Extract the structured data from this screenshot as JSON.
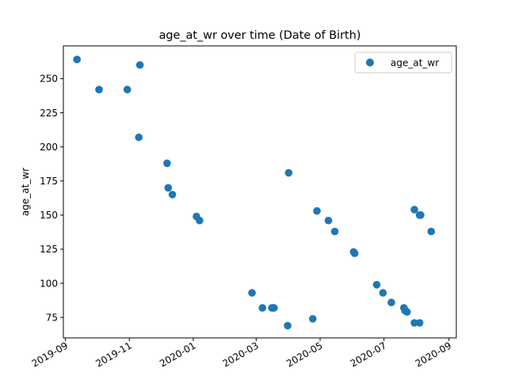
{
  "chart_data": {
    "type": "scatter",
    "title": "age_at_wr over time (Date of Birth)",
    "xlabel": "",
    "ylabel": "age_at_wr",
    "x_is_date": true,
    "xlim": [
      "2019-08-30",
      "2020-09-08"
    ],
    "ylim": [
      60,
      274
    ],
    "x_ticks": [
      "2019-09-01",
      "2019-11-01",
      "2020-01-01",
      "2020-03-01",
      "2020-05-01",
      "2020-07-01",
      "2020-09-01"
    ],
    "x_tick_labels": [
      "2019-09",
      "2019-11",
      "2020-01",
      "2020-03",
      "2020-05",
      "2020-07",
      "2020-09"
    ],
    "y_ticks": [
      75,
      100,
      125,
      150,
      175,
      200,
      225,
      250
    ],
    "y_tick_labels": [
      "75",
      "100",
      "125",
      "150",
      "175",
      "200",
      "225",
      "250"
    ],
    "grid": false,
    "legend": {
      "position": "top-right",
      "entries": [
        "age_at_wr"
      ]
    },
    "marker_color": "#1f77b4",
    "series": [
      {
        "name": "age_at_wr",
        "points": [
          [
            "2019-09-12",
            264
          ],
          [
            "2019-10-03",
            242
          ],
          [
            "2019-10-30",
            242
          ],
          [
            "2019-11-11",
            260
          ],
          [
            "2019-11-10",
            207
          ],
          [
            "2019-12-07",
            188
          ],
          [
            "2019-12-08",
            170
          ],
          [
            "2019-12-12",
            165
          ],
          [
            "2020-01-04",
            149
          ],
          [
            "2020-01-07",
            146
          ],
          [
            "2020-02-26",
            93
          ],
          [
            "2020-03-07",
            82
          ],
          [
            "2020-03-16",
            82
          ],
          [
            "2020-03-17",
            82
          ],
          [
            "2020-03-18",
            82
          ],
          [
            "2020-03-31",
            69
          ],
          [
            "2020-04-01",
            181
          ],
          [
            "2020-04-24",
            74
          ],
          [
            "2020-04-28",
            153
          ],
          [
            "2020-05-09",
            146
          ],
          [
            "2020-05-15",
            138
          ],
          [
            "2020-06-02",
            123
          ],
          [
            "2020-06-03",
            122
          ],
          [
            "2020-06-24",
            99
          ],
          [
            "2020-06-30",
            93
          ],
          [
            "2020-07-08",
            86
          ],
          [
            "2020-07-20",
            82
          ],
          [
            "2020-07-21",
            80
          ],
          [
            "2020-07-23",
            79
          ],
          [
            "2020-07-30",
            71
          ],
          [
            "2020-07-30",
            154
          ],
          [
            "2020-08-04",
            150
          ],
          [
            "2020-08-04",
            71
          ],
          [
            "2020-08-05",
            150
          ],
          [
            "2020-08-15",
            138
          ]
        ]
      }
    ]
  }
}
